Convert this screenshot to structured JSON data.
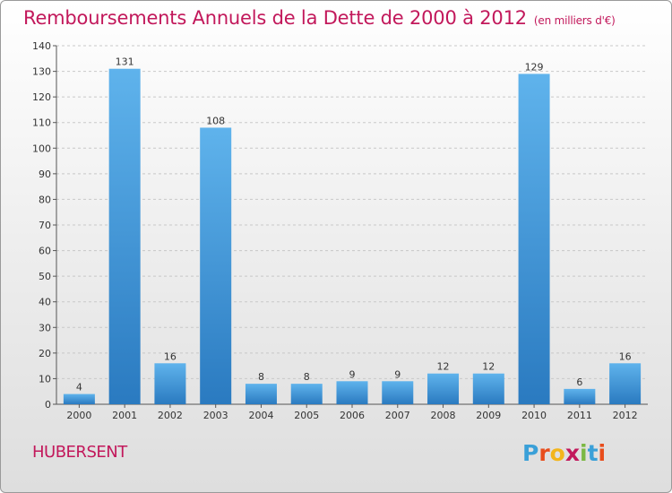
{
  "header": {
    "title": "Remboursements Annuels de la Dette de 2000 à 2012",
    "subtitle": "(en milliers d'€)"
  },
  "commune": "HUBERSENT",
  "logo": {
    "letters": [
      "P",
      "r",
      "o",
      "x",
      "i",
      "t",
      "i"
    ],
    "colors": [
      "#3aa0d8",
      "#e84d1c",
      "#f3b51b",
      "#c2185b",
      "#7bb843",
      "#3aa0d8",
      "#e84d1c"
    ]
  },
  "chart_data": {
    "type": "bar",
    "title": "Remboursements Annuels de la Dette de 2000 à 2012",
    "categories": [
      "2000",
      "2001",
      "2002",
      "2003",
      "2004",
      "2005",
      "2006",
      "2007",
      "2008",
      "2009",
      "2010",
      "2011",
      "2012"
    ],
    "values": [
      4,
      131,
      16,
      108,
      8,
      8,
      9,
      9,
      12,
      12,
      129,
      6,
      16
    ],
    "ylim": [
      0,
      140
    ],
    "yticks": [
      0,
      10,
      20,
      30,
      40,
      50,
      60,
      70,
      80,
      90,
      100,
      110,
      120,
      130,
      140
    ],
    "grid": true,
    "bar_color": "#3d94d6"
  }
}
